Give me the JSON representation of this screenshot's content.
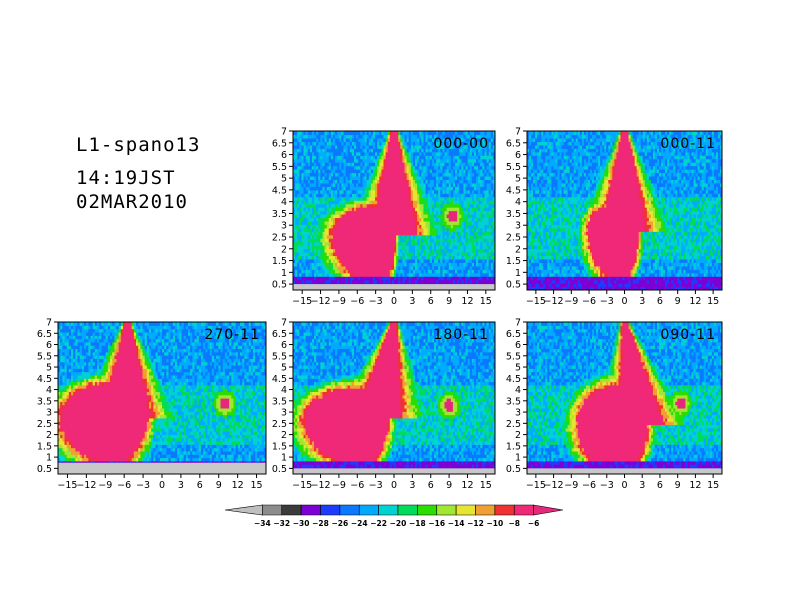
{
  "header": {
    "title": "L1-spano13",
    "time": "14:19JST",
    "date": "02MAR2010"
  },
  "chart_data": [
    {
      "type": "heatmap",
      "label": "000-00",
      "x_ticks": [
        "-15",
        "-12",
        "-9",
        "-6",
        "-3",
        "0",
        "3",
        "6",
        "9",
        "12",
        "15"
      ],
      "y_ticks": [
        "0.5",
        "1",
        "1.5",
        "2",
        "2.5",
        "3",
        "3.5",
        "4",
        "4.5",
        "5",
        "5.5",
        "6",
        "6.5",
        "7"
      ],
      "xlim": [
        -16.5,
        16.5
      ],
      "ylim": [
        0.25,
        7
      ],
      "blob": {
        "cx": -2.0,
        "cy": 2.6,
        "rx_left": 8.0,
        "rx_right": 2.2,
        "ry_up": 1.25,
        "ry_down": 2.0
      },
      "plume": {
        "x_bottom": 0.0,
        "x_top": 0.0,
        "y_top": 7
      },
      "spot": {
        "x": 9.5,
        "y": 3.4
      },
      "bottom_strip_top": 0.5
    },
    {
      "type": "heatmap",
      "label": "000-11",
      "x_ticks": [
        "-15",
        "-12",
        "-9",
        "-6",
        "-3",
        "0",
        "3",
        "6",
        "9",
        "12",
        "15"
      ],
      "y_ticks": [
        "0.5",
        "1",
        "1.5",
        "2",
        "2.5",
        "3",
        "3.5",
        "4",
        "4.5",
        "5",
        "5.5",
        "6",
        "6.5",
        "7"
      ],
      "xlim": [
        -16.5,
        16.5
      ],
      "ylim": [
        0.25,
        7
      ],
      "blob": {
        "cx": -0.5,
        "cy": 2.8,
        "rx_left": 5.5,
        "rx_right": 2.8,
        "ry_up": 1.2,
        "ry_down": 2.1
      },
      "plume": {
        "x_bottom": 0.0,
        "x_top": 0.0,
        "y_top": 7
      },
      "spot": null,
      "bottom_strip_top": 0.25
    },
    {
      "type": "heatmap",
      "label": "270-11",
      "x_ticks": [
        "-15",
        "-12",
        "-9",
        "-6",
        "-3",
        "0",
        "3",
        "6",
        "9",
        "12",
        "15"
      ],
      "y_ticks": [
        "0.5",
        "1",
        "1.5",
        "2",
        "2.5",
        "3",
        "3.5",
        "4",
        "4.5",
        "5",
        "5.5",
        "6",
        "6.5",
        "7"
      ],
      "xlim": [
        -16.5,
        16.5
      ],
      "ylim": [
        0.25,
        7
      ],
      "blob": {
        "cx": -7.5,
        "cy": 2.8,
        "rx_left": 8.5,
        "rx_right": 5.0,
        "ry_up": 1.5,
        "ry_down": 2.0
      },
      "plume": {
        "x_bottom": -5.5,
        "x_top": -5.5,
        "y_top": 7
      },
      "spot": {
        "x": 10.0,
        "y": 3.4
      },
      "bottom_strip_top": 0.75
    },
    {
      "type": "heatmap",
      "label": "180-11",
      "x_ticks": [
        "-15",
        "-12",
        "-9",
        "-6",
        "-3",
        "0",
        "3",
        "6",
        "9",
        "12",
        "15"
      ],
      "y_ticks": [
        "0.5",
        "1",
        "1.5",
        "2",
        "2.5",
        "3",
        "3.5",
        "4",
        "4.5",
        "5",
        "5.5",
        "6",
        "6.5",
        "7"
      ],
      "xlim": [
        -16.5,
        16.5
      ],
      "ylim": [
        0.25,
        7
      ],
      "blob": {
        "cx": -5.5,
        "cy": 2.7,
        "rx_left": 9.0,
        "rx_right": 4.5,
        "ry_up": 1.4,
        "ry_down": 2.0
      },
      "plume": {
        "x_bottom": -2.5,
        "x_top": 0.0,
        "y_top": 7
      },
      "spot": {
        "x": 9.0,
        "y": 3.3
      },
      "bottom_strip_top": 0.5
    },
    {
      "type": "heatmap",
      "label": "090-11",
      "x_ticks": [
        "-15",
        "-12",
        "-9",
        "-6",
        "-3",
        "0",
        "3",
        "6",
        "9",
        "12",
        "15"
      ],
      "y_ticks": [
        "0.5",
        "1",
        "1.5",
        "2",
        "2.5",
        "3",
        "3.5",
        "4",
        "4.5",
        "5",
        "5.5",
        "6",
        "6.5",
        "7"
      ],
      "xlim": [
        -16.5,
        16.5
      ],
      "ylim": [
        0.25,
        7
      ],
      "blob": {
        "cx": -1.0,
        "cy": 2.4,
        "rx_left": 7.0,
        "rx_right": 4.8,
        "ry_up": 1.8,
        "ry_down": 1.9
      },
      "plume": {
        "x_bottom": 3.0,
        "x_top": 0.0,
        "y_top": 7
      },
      "spot": {
        "x": 9.5,
        "y": 3.4
      },
      "bottom_strip_top": 0.5
    }
  ],
  "colorbar": {
    "labels": [
      "-34",
      "-32",
      "-30",
      "-28",
      "-26",
      "-24",
      "-22",
      "-20",
      "-18",
      "-16",
      "-14",
      "-12",
      "-10",
      "-8",
      "-6"
    ],
    "colors": [
      "#bfbfbf",
      "#8c8c8c",
      "#3b3b3b",
      "#7d00d4",
      "#1e3cff",
      "#0a78ff",
      "#00aaff",
      "#00d2d2",
      "#00dc5a",
      "#2ddc00",
      "#a0e632",
      "#e6e632",
      "#f0a032",
      "#f03232",
      "#f02878",
      "#e6287d"
    ]
  }
}
